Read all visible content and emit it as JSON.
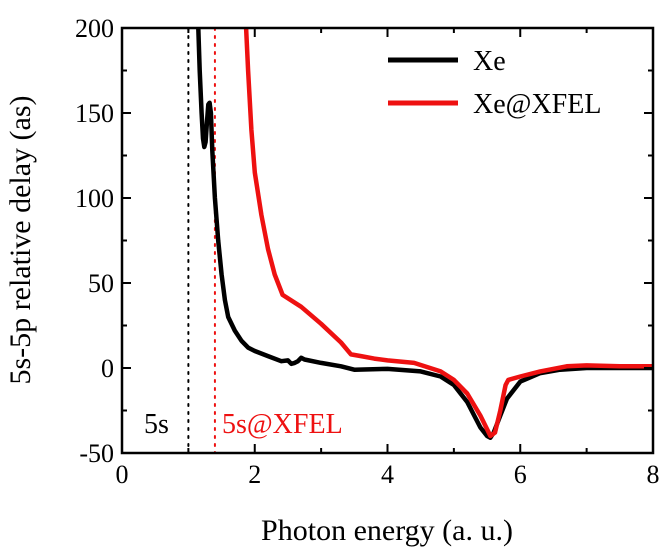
{
  "chart_data": {
    "type": "line",
    "xlabel": "Photon energy (a. u.)",
    "ylabel": "5s-5p relative delay (as)",
    "xlim": [
      0,
      8
    ],
    "ylim": [
      -50,
      200
    ],
    "x_ticks": [
      "0",
      "2",
      "4",
      "6",
      "8"
    ],
    "y_ticks": [
      "-50",
      "0",
      "50",
      "100",
      "150",
      "200"
    ],
    "legend_position": "top-right",
    "series": [
      {
        "name": "Xe",
        "color": "#000000",
        "points": [
          [
            1.15,
            200
          ],
          [
            1.17,
            175
          ],
          [
            1.2,
            150
          ],
          [
            1.22,
            135
          ],
          [
            1.24,
            130
          ],
          [
            1.26,
            133
          ],
          [
            1.28,
            145
          ],
          [
            1.3,
            155
          ],
          [
            1.32,
            156
          ],
          [
            1.34,
            150
          ],
          [
            1.36,
            128
          ],
          [
            1.4,
            100
          ],
          [
            1.45,
            75
          ],
          [
            1.5,
            55
          ],
          [
            1.55,
            40
          ],
          [
            1.6,
            30
          ],
          [
            1.7,
            22
          ],
          [
            1.8,
            16
          ],
          [
            1.9,
            12
          ],
          [
            2.0,
            10
          ],
          [
            2.2,
            7
          ],
          [
            2.4,
            4
          ],
          [
            2.5,
            4.5
          ],
          [
            2.55,
            2.5
          ],
          [
            2.6,
            3
          ],
          [
            2.65,
            4
          ],
          [
            2.7,
            6
          ],
          [
            2.75,
            5
          ],
          [
            3.0,
            3
          ],
          [
            3.3,
            1
          ],
          [
            3.5,
            -1
          ],
          [
            4.0,
            -0.5
          ],
          [
            4.5,
            -2
          ],
          [
            4.8,
            -5
          ],
          [
            5.0,
            -10
          ],
          [
            5.2,
            -20
          ],
          [
            5.4,
            -35
          ],
          [
            5.5,
            -40
          ],
          [
            5.55,
            -41
          ],
          [
            5.6,
            -38
          ],
          [
            5.7,
            -28
          ],
          [
            5.8,
            -18
          ],
          [
            6.0,
            -8
          ],
          [
            6.3,
            -3
          ],
          [
            6.6,
            -1
          ],
          [
            7.0,
            0
          ],
          [
            8.0,
            0
          ]
        ]
      },
      {
        "name": "Xe@XFEL",
        "color": "#ee1111",
        "points": [
          [
            1.87,
            200
          ],
          [
            1.9,
            175
          ],
          [
            1.95,
            140
          ],
          [
            2.0,
            115
          ],
          [
            2.1,
            90
          ],
          [
            2.2,
            70
          ],
          [
            2.3,
            55
          ],
          [
            2.4,
            45
          ],
          [
            2.42,
            43
          ],
          [
            2.7,
            36
          ],
          [
            3.0,
            26
          ],
          [
            3.3,
            15
          ],
          [
            3.45,
            8
          ],
          [
            3.6,
            7
          ],
          [
            3.8,
            5.5
          ],
          [
            4.0,
            4.5
          ],
          [
            4.4,
            3
          ],
          [
            4.8,
            -2
          ],
          [
            5.0,
            -7
          ],
          [
            5.2,
            -15
          ],
          [
            5.4,
            -28
          ],
          [
            5.5,
            -36
          ],
          [
            5.55,
            -40
          ],
          [
            5.62,
            -38
          ],
          [
            5.7,
            -25
          ],
          [
            5.78,
            -10
          ],
          [
            5.82,
            -7
          ],
          [
            6.0,
            -5
          ],
          [
            6.3,
            -2
          ],
          [
            6.7,
            1
          ],
          [
            7.0,
            1.5
          ],
          [
            7.5,
            1
          ],
          [
            8.0,
            1
          ]
        ]
      }
    ],
    "thresholds": [
      {
        "label": "5s",
        "x": 1.0,
        "color": "#000000"
      },
      {
        "label": "5s@XFEL",
        "x": 1.4,
        "color": "#ee1111"
      }
    ]
  }
}
